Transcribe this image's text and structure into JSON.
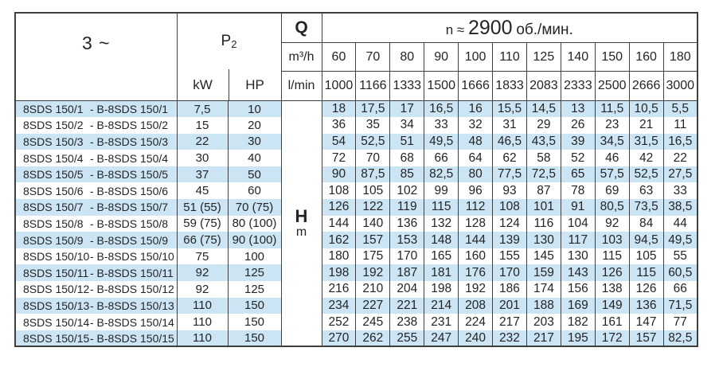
{
  "table": {
    "phase_label": "3 ~",
    "p2": {
      "label": "P",
      "sub": "2",
      "kw": "kW",
      "hp": "HP"
    },
    "q": {
      "label": "Q",
      "unit_m3h": "m³/h",
      "unit_lmin": "l/min"
    },
    "h": {
      "label": "H",
      "unit": "m"
    },
    "rpm": {
      "prefix": "n ≈",
      "value": "2900",
      "suffix": "об./мин."
    },
    "flow_m3h": [
      "60",
      "70",
      "80",
      "90",
      "100",
      "110",
      "125",
      "140",
      "150",
      "160",
      "180"
    ],
    "flow_lmin": [
      "1000",
      "1166",
      "1333",
      "1500",
      "1666",
      "1833",
      "2083",
      "2333",
      "2500",
      "2666",
      "3000"
    ],
    "rows": [
      {
        "model": "8SDS 150/1",
        "alt": "- B-8SDS 150/1",
        "kw": "7,5",
        "hp": "10",
        "h": [
          "18",
          "17,5",
          "17",
          "16,5",
          "16",
          "15,5",
          "14,5",
          "13",
          "11,5",
          "10,5",
          "5,5"
        ]
      },
      {
        "model": "8SDS 150/2",
        "alt": "- B-8SDS 150/2",
        "kw": "15",
        "hp": "20",
        "h": [
          "36",
          "35",
          "34",
          "33",
          "32",
          "31",
          "29",
          "26",
          "23",
          "21",
          "11"
        ]
      },
      {
        "model": "8SDS 150/3",
        "alt": "- B-8SDS 150/3",
        "kw": "22",
        "hp": "30",
        "h": [
          "54",
          "52,5",
          "51",
          "49,5",
          "48",
          "46,5",
          "43,5",
          "39",
          "34,5",
          "31,5",
          "16,5"
        ]
      },
      {
        "model": "8SDS 150/4",
        "alt": "- B-8SDS 150/4",
        "kw": "30",
        "hp": "40",
        "h": [
          "72",
          "70",
          "68",
          "66",
          "64",
          "62",
          "58",
          "52",
          "46",
          "42",
          "22"
        ]
      },
      {
        "model": "8SDS 150/5",
        "alt": "- B-8SDS 150/5",
        "kw": "37",
        "hp": "50",
        "h": [
          "90",
          "87,5",
          "85",
          "82,5",
          "80",
          "77,5",
          "72,5",
          "65",
          "57,5",
          "52,5",
          "27,5"
        ]
      },
      {
        "model": "8SDS 150/6",
        "alt": "- B-8SDS 150/6",
        "kw": "45",
        "hp": "60",
        "h": [
          "108",
          "105",
          "102",
          "99",
          "96",
          "93",
          "87",
          "78",
          "69",
          "63",
          "33"
        ]
      },
      {
        "model": "8SDS 150/7",
        "alt": "- B-8SDS 150/7",
        "kw": "51 (55)",
        "hp": "70 (75)",
        "h": [
          "126",
          "122",
          "119",
          "115",
          "112",
          "108",
          "101",
          "91",
          "80,5",
          "73,5",
          "38,5"
        ]
      },
      {
        "model": "8SDS 150/8",
        "alt": "- B-8SDS 150/8",
        "kw": "59 (75)",
        "hp": "80 (100)",
        "h": [
          "144",
          "140",
          "136",
          "132",
          "128",
          "124",
          "116",
          "104",
          "92",
          "84",
          "44"
        ]
      },
      {
        "model": "8SDS 150/9",
        "alt": "- B-8SDS 150/9",
        "kw": "66 (75)",
        "hp": "90 (100)",
        "h": [
          "162",
          "157",
          "153",
          "148",
          "144",
          "139",
          "130",
          "117",
          "103",
          "94,5",
          "49,5"
        ]
      },
      {
        "model": "8SDS 150/10",
        "alt": "- B-8SDS 150/10",
        "kw": "75",
        "hp": "100",
        "h": [
          "180",
          "175",
          "170",
          "165",
          "160",
          "155",
          "145",
          "130",
          "115",
          "105",
          "55"
        ]
      },
      {
        "model": "8SDS 150/11",
        "alt": "- B-8SDS 150/11",
        "kw": "92",
        "hp": "125",
        "h": [
          "198",
          "192",
          "187",
          "181",
          "176",
          "170",
          "159",
          "143",
          "126",
          "115",
          "60,5"
        ]
      },
      {
        "model": "8SDS 150/12",
        "alt": "- B-8SDS 150/12",
        "kw": "92",
        "hp": "125",
        "h": [
          "216",
          "210",
          "204",
          "198",
          "192",
          "186",
          "174",
          "156",
          "138",
          "126",
          "66"
        ]
      },
      {
        "model": "8SDS 150/13",
        "alt": "- B-8SDS 150/13",
        "kw": "110",
        "hp": "150",
        "h": [
          "234",
          "227",
          "221",
          "214",
          "208",
          "201",
          "188",
          "169",
          "149",
          "136",
          "71,5"
        ]
      },
      {
        "model": "8SDS 150/14",
        "alt": "- B-8SDS 150/14",
        "kw": "110",
        "hp": "150",
        "h": [
          "252",
          "245",
          "238",
          "231",
          "224",
          "217",
          "203",
          "182",
          "161",
          "147",
          "77"
        ]
      },
      {
        "model": "8SDS 150/15",
        "alt": "- B-8SDS 150/15",
        "kw": "110",
        "hp": "150",
        "h": [
          "270",
          "262",
          "255",
          "247",
          "240",
          "232",
          "217",
          "195",
          "172",
          "157",
          "82,5"
        ]
      }
    ]
  },
  "colors": {
    "stripe_blue": "#cce5f4",
    "border": "#3f3f3f",
    "text": "#242424",
    "background": "#ffffff"
  }
}
